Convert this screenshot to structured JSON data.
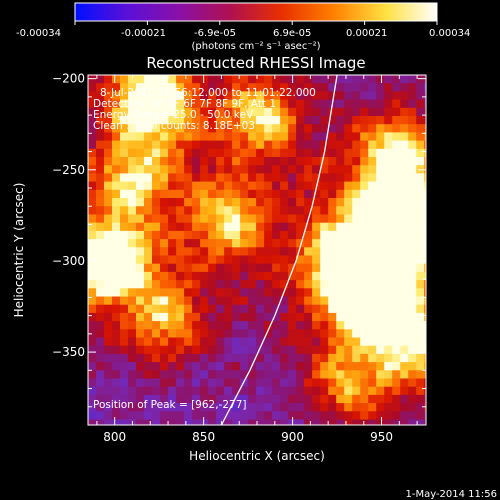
{
  "colorbar": {
    "ticks": [
      "-0.00034",
      "-0.00021",
      "-6.9e-05",
      "6.9e-05",
      "0.00021",
      "0.00034"
    ],
    "units": "(photons cm⁻² s⁻¹ asec⁻²)",
    "range": [
      -0.00034,
      0.00034
    ],
    "stops": [
      "#0010ff",
      "#5a10d8",
      "#8a10a8",
      "#b01050",
      "#e83000",
      "#ff8000",
      "#ffe040",
      "#ffffff"
    ]
  },
  "chart_data": {
    "type": "heatmap",
    "title": "Reconstructed RHESSI Image",
    "xlabel": "Heliocentric X (arcsec)",
    "ylabel": "Heliocentric Y (arcsec)",
    "xlim": [
      785,
      975
    ],
    "ylim": [
      -390,
      -198
    ],
    "xticks": [
      800,
      850,
      900,
      950
    ],
    "yticks": [
      -200,
      -250,
      -300,
      -350
    ],
    "annotations": [
      "8-Jul-2012 10:56:12.000 to 11:01:22.000",
      "Detectors: 3F 5F 6F 7F 8F 9F, Att 1",
      "Energy Range: 25.0 - 50.0 keV",
      "Clean :  Total counts: 8.18E+03"
    ],
    "peak_label": "Position of Peak = [962,-277]",
    "peak": [
      962,
      -277
    ],
    "sources": [
      {
        "x": 960,
        "y": -277,
        "intensity": 1.0
      },
      {
        "x": 795,
        "y": -298,
        "intensity": 0.9
      },
      {
        "x": 818,
        "y": -210,
        "intensity": 0.85
      },
      {
        "x": 945,
        "y": -318,
        "intensity": 0.75
      },
      {
        "x": 928,
        "y": -298,
        "intensity": 0.7
      },
      {
        "x": 957,
        "y": -240,
        "intensity": 0.6
      },
      {
        "x": 880,
        "y": -218,
        "intensity": 0.55
      },
      {
        "x": 968,
        "y": -345,
        "intensity": 0.5
      },
      {
        "x": 862,
        "y": -275,
        "intensity": 0.5
      },
      {
        "x": 826,
        "y": -330,
        "intensity": 0.45
      },
      {
        "x": 930,
        "y": -365,
        "intensity": 0.4
      },
      {
        "x": 808,
        "y": -252,
        "intensity": 0.45
      }
    ],
    "limb_curve": [
      [
        860,
        -390
      ],
      [
        876,
        -360
      ],
      [
        890,
        -330
      ],
      [
        902,
        -300
      ],
      [
        911,
        -270
      ],
      [
        918,
        -240
      ],
      [
        925,
        -198
      ]
    ]
  },
  "footer": {
    "timestamp": "1-May-2014 11:56"
  }
}
